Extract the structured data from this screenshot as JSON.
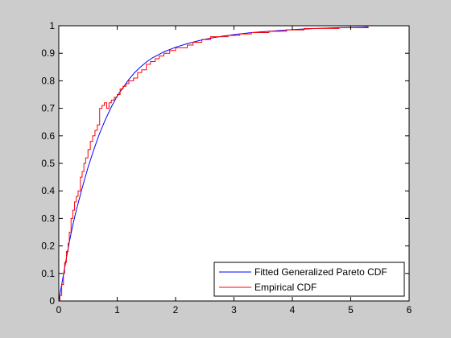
{
  "chart_data": {
    "type": "line",
    "title": "",
    "xlabel": "",
    "ylabel": "",
    "xlim": [
      0,
      6
    ],
    "ylim": [
      0,
      1
    ],
    "xticks": [
      "0",
      "1",
      "2",
      "3",
      "4",
      "5",
      "6"
    ],
    "yticks": [
      "0",
      "0.1",
      "0.2",
      "0.3",
      "0.4",
      "0.5",
      "0.6",
      "0.7",
      "0.8",
      "0.9",
      "1"
    ],
    "grid": false,
    "legend_position": "bottom-right",
    "series": [
      {
        "name": "Fitted Generalized Pareto CDF",
        "color": "#0000ff",
        "style": "smooth",
        "x": [
          0,
          0.05,
          0.1,
          0.15,
          0.2,
          0.25,
          0.3,
          0.4,
          0.5,
          0.6,
          0.7,
          0.8,
          0.9,
          1.0,
          1.1,
          1.2,
          1.3,
          1.4,
          1.5,
          1.6,
          1.8,
          2.0,
          2.2,
          2.4,
          2.6,
          2.8,
          3.0,
          3.3,
          3.6,
          4.0,
          4.4,
          4.8,
          5.2,
          5.3
        ],
        "y": [
          0,
          0.06,
          0.12,
          0.18,
          0.235,
          0.285,
          0.33,
          0.41,
          0.485,
          0.55,
          0.61,
          0.66,
          0.705,
          0.745,
          0.775,
          0.805,
          0.83,
          0.85,
          0.868,
          0.883,
          0.905,
          0.922,
          0.935,
          0.946,
          0.955,
          0.962,
          0.968,
          0.975,
          0.98,
          0.986,
          0.99,
          0.993,
          0.995,
          0.996
        ]
      },
      {
        "name": "Empirical CDF",
        "color": "#ff0000",
        "style": "step",
        "x": [
          0,
          0.02,
          0.05,
          0.08,
          0.1,
          0.13,
          0.16,
          0.18,
          0.21,
          0.24,
          0.27,
          0.3,
          0.33,
          0.37,
          0.4,
          0.43,
          0.46,
          0.5,
          0.54,
          0.58,
          0.62,
          0.66,
          0.7,
          0.74,
          0.78,
          0.82,
          0.86,
          0.9,
          0.95,
          1.0,
          1.05,
          1.1,
          1.15,
          1.2,
          1.28,
          1.35,
          1.42,
          1.5,
          1.57,
          1.65,
          1.72,
          1.8,
          1.9,
          2.0,
          2.1,
          2.2,
          2.3,
          2.45,
          2.6,
          2.75,
          2.9,
          3.1,
          3.3,
          3.6,
          3.9,
          4.2,
          4.5,
          4.8,
          5.3
        ],
        "y": [
          0,
          0.02,
          0.06,
          0.1,
          0.14,
          0.18,
          0.21,
          0.25,
          0.3,
          0.33,
          0.36,
          0.38,
          0.4,
          0.45,
          0.47,
          0.5,
          0.52,
          0.55,
          0.58,
          0.6,
          0.62,
          0.64,
          0.7,
          0.71,
          0.72,
          0.7,
          0.72,
          0.73,
          0.74,
          0.75,
          0.77,
          0.78,
          0.79,
          0.8,
          0.81,
          0.83,
          0.84,
          0.86,
          0.87,
          0.88,
          0.89,
          0.9,
          0.91,
          0.92,
          0.92,
          0.93,
          0.94,
          0.95,
          0.96,
          0.96,
          0.965,
          0.97,
          0.975,
          0.98,
          0.985,
          0.99,
          0.99,
          0.993,
          0.996
        ]
      }
    ]
  }
}
